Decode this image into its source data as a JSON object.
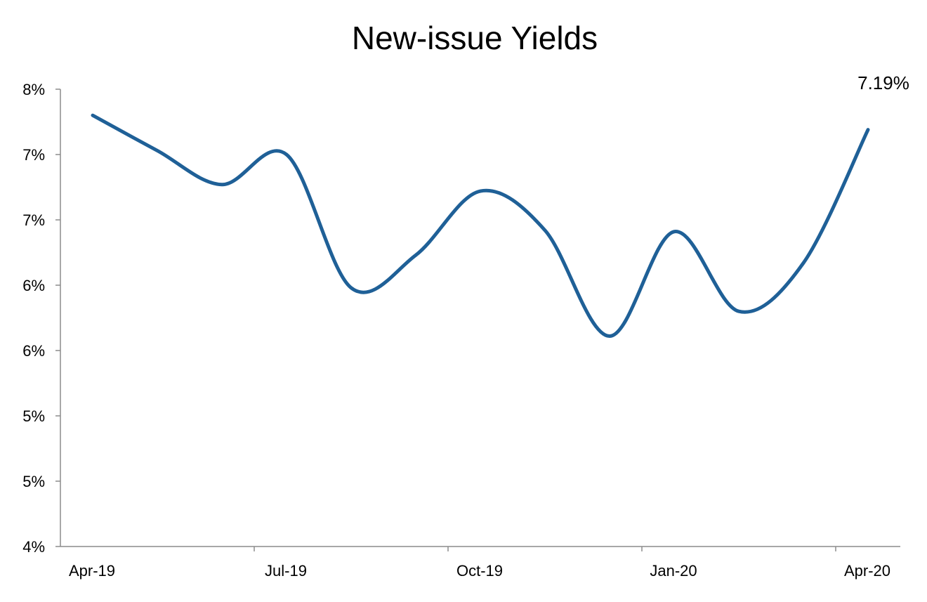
{
  "chart_data": {
    "type": "line",
    "title": "New-issue Yields",
    "xlabel": "",
    "ylabel": "",
    "x_tick_labels": [
      "Apr-19",
      "Jul-19",
      "Oct-19",
      "Jan-20",
      "Apr-20"
    ],
    "y_tick_labels": [
      "4%",
      "5%",
      "5%",
      "6%",
      "6%",
      "7%",
      "7%",
      "8%"
    ],
    "y_tick_values": [
      4.0,
      4.5,
      5.0,
      5.5,
      6.0,
      6.5,
      7.0,
      7.5
    ],
    "ylim": [
      4.0,
      7.5
    ],
    "grid": false,
    "legend": "none",
    "series": [
      {
        "color": "#1f6097",
        "x": [
          "2019-04",
          "2019-05",
          "2019-06",
          "2019-07",
          "2019-08",
          "2019-09",
          "2019-10",
          "2019-11",
          "2019-12",
          "2020-01",
          "2020-02",
          "2020-03",
          "2020-04"
        ],
        "values": [
          7.3,
          7.03,
          6.77,
          7.0,
          5.98,
          6.23,
          6.72,
          6.42,
          5.61,
          6.41,
          5.8,
          6.17,
          7.19
        ]
      }
    ],
    "annotation": {
      "text": "7.19%"
    }
  }
}
